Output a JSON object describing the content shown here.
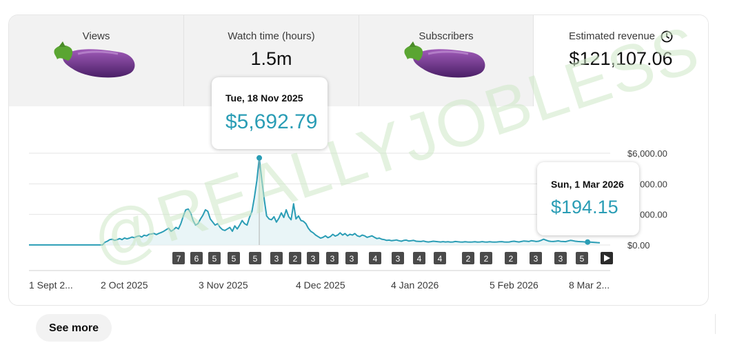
{
  "metrics": {
    "views": {
      "label": "Views",
      "icon": "eggplant-emoji"
    },
    "watch_time": {
      "label": "Watch time (hours)",
      "value": "1.5m"
    },
    "subscribers": {
      "label": "Subscribers",
      "icon": "eggplant-emoji"
    },
    "revenue": {
      "label": "Estimated revenue",
      "value": "$121,107.06",
      "icon": "clock-icon"
    }
  },
  "tooltips": {
    "peak": {
      "date": "Tue, 18 Nov 2025",
      "value": "$5,692.79"
    },
    "latest": {
      "date": "Sun, 1 Mar 2026",
      "value": "$194.15"
    }
  },
  "watermark": "@REALLYJOBLESS",
  "see_more_label": "See more",
  "chart_data": {
    "type": "area",
    "x_labels": [
      "1 Sept 2...",
      "2 Oct 2025",
      "3 Nov 2025",
      "4 Dec 2025",
      "4 Jan 2026",
      "5 Feb 2026",
      "8 Mar 2..."
    ],
    "y_ticks": [
      "$6,000.00",
      "$4,000.00",
      "$2,000.00",
      "$0.00"
    ],
    "y_tick_values": [
      6000,
      4000,
      2000,
      0
    ],
    "ylim": [
      0,
      6000
    ],
    "grid": true,
    "color": "#2a9db5",
    "fill_color": "#e3f3f5",
    "series": [
      {
        "values": [
          5,
          5,
          5,
          5,
          5,
          5,
          5,
          5,
          5,
          5,
          5,
          5,
          5,
          5,
          5,
          5,
          5,
          5,
          5,
          5,
          5,
          5,
          5,
          5,
          5,
          5,
          5,
          5,
          5,
          5,
          5,
          180,
          250,
          350,
          380,
          300,
          350,
          420,
          350,
          460,
          400,
          450,
          520,
          480,
          560,
          600,
          520,
          640,
          600,
          700,
          720,
          760,
          680,
          760,
          820,
          900,
          1000,
          1100,
          900,
          1000,
          1150,
          1050,
          1400,
          1900,
          2300,
          2350,
          2100,
          1600,
          1300,
          1400,
          1700,
          1950,
          2300,
          2200,
          1700,
          1500,
          1300,
          1400,
          1150,
          1000,
          950,
          1050,
          1150,
          900,
          1250,
          1050,
          1300,
          1600,
          1400,
          1300,
          1800,
          2200,
          3100,
          4200,
          5692.79,
          4300,
          3000,
          1900,
          1700,
          1650,
          1850,
          1500,
          1750,
          2100,
          1800,
          2300,
          1850,
          1650,
          2700,
          1700,
          1900,
          1600,
          1550,
          1400,
          1100,
          900,
          800,
          650,
          550,
          450,
          500,
          600,
          480,
          550,
          700,
          580,
          650,
          800,
          650,
          750,
          600,
          700,
          650,
          750,
          600,
          550,
          650,
          600,
          500,
          550,
          600,
          500,
          420,
          450,
          380,
          350,
          300,
          320,
          280,
          300,
          330,
          280,
          250,
          300,
          320,
          260,
          280,
          300,
          250,
          240,
          230,
          260,
          220,
          200,
          220,
          250,
          230,
          210,
          200,
          220,
          200,
          210,
          190,
          200,
          230,
          210,
          200,
          190,
          210,
          200,
          190,
          200,
          210,
          190,
          200,
          220,
          200,
          190,
          210,
          200,
          190,
          200,
          210,
          220,
          200,
          190,
          200,
          230,
          250,
          220,
          200,
          230,
          260,
          250,
          230,
          280,
          260,
          230,
          250,
          300,
          380,
          320,
          260,
          240,
          230,
          250,
          270,
          240,
          230,
          220,
          260,
          300,
          280,
          250,
          230,
          220,
          210,
          200,
          194.15,
          190,
          180,
          170,
          160,
          150
        ]
      }
    ],
    "annotations": [
      "7",
      "6",
      "5",
      "5",
      "5",
      "3",
      "2",
      "3",
      "3",
      "3",
      "4",
      "3",
      "4",
      "4",
      "2",
      "2",
      "2",
      "3",
      "3",
      "5"
    ],
    "play_icon": "play-icon"
  }
}
